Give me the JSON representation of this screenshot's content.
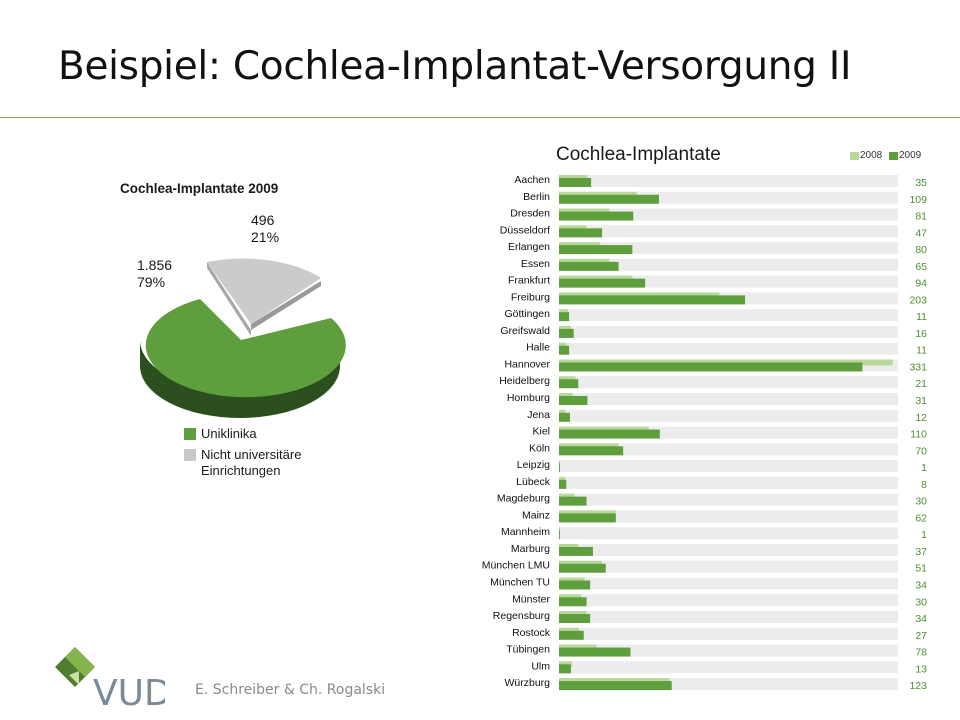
{
  "slide": {
    "title": "Beispiel: Cochlea-Implantat-Versorgung II",
    "footer": "E. Schreiber & Ch. Rogalski",
    "logo_text": "VUD"
  },
  "colors": {
    "green": "#5e9e3c",
    "green_dark": "#2e5a22",
    "light_green": "#b9d89b",
    "gray": "#c8c8c8",
    "track": "#ececec",
    "value_green": "#4e8e2e"
  },
  "chart_data": [
    {
      "type": "pie",
      "title": "Cochlea-Implantate 2009",
      "slices": [
        {
          "name": "Uniklinika",
          "value": 1856,
          "label": "1.856",
          "percent_label": "79%"
        },
        {
          "name": "Nicht universitäre Einrichtungen",
          "value": 496,
          "label": "496",
          "percent_label": "21%"
        }
      ],
      "legend": [
        "Uniklinika",
        "Nicht universitäre Einrichtungen"
      ],
      "legend_lines": [
        [
          "Uniklinika"
        ],
        [
          "Nicht universitäre",
          "Einrichtungen"
        ]
      ],
      "legend_position": "bottom"
    },
    {
      "type": "bar",
      "orientation": "horizontal",
      "title": "Cochlea-Implantate",
      "series": [
        {
          "name": "2008",
          "values": [
            31,
            85,
            55,
            30,
            45,
            55,
            80,
            175,
            10,
            13,
            8,
            364,
            18,
            15,
            7,
            98,
            65,
            1,
            7,
            17,
            62,
            1,
            21,
            47,
            28,
            24,
            30,
            22,
            41,
            14,
            121
          ]
        },
        {
          "name": "2009",
          "values": [
            35,
            109,
            81,
            47,
            80,
            65,
            94,
            203,
            11,
            16,
            11,
            331,
            21,
            31,
            12,
            110,
            70,
            1,
            8,
            30,
            62,
            1,
            37,
            51,
            34,
            30,
            34,
            27,
            78,
            13,
            123
          ]
        }
      ],
      "categories": [
        "Aachen",
        "Berlin",
        "Dresden",
        "Düsseldorf",
        "Erlangen",
        "Essen",
        "Frankfurt",
        "Freiburg",
        "Göttingen",
        "Greifswald",
        "Halle",
        "Hannover",
        "Heidelberg",
        "Homburg",
        "Jena",
        "Kiel",
        "Köln",
        "Leipzig",
        "Lübeck",
        "Magdeburg",
        "Mainz",
        "Mannheim",
        "Marburg",
        "München LMU",
        "München TU",
        "Münster",
        "Regensburg",
        "Rostock",
        "Tübingen",
        "Ulm",
        "Würzburg"
      ],
      "value_labels": [
        "35",
        "109",
        "81",
        "47",
        "80",
        "65",
        "94",
        "203",
        "11",
        "16",
        "11",
        "331",
        "21",
        "31",
        "12",
        "110",
        "70",
        "1",
        "8",
        "30",
        "62",
        "1",
        "37",
        "51",
        "34",
        "30",
        "34",
        "27",
        "78",
        "13",
        "123"
      ],
      "xlim": [
        0,
        360
      ],
      "legend_position": "top-right",
      "grid": false
    }
  ]
}
